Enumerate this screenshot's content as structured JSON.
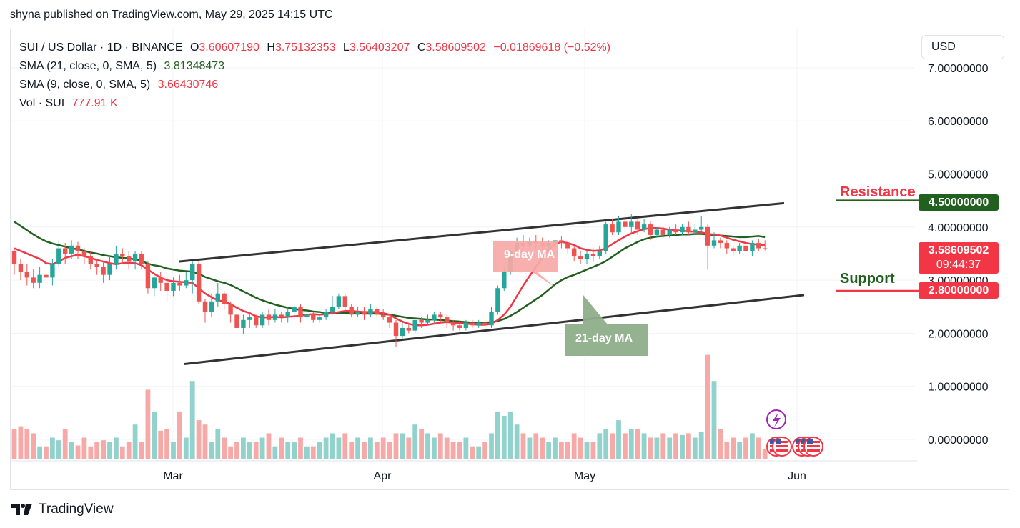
{
  "header": {
    "published_text": "shyna published on TradingView.com, May 29, 2025 14:15 UTC"
  },
  "legend": {
    "symbol": "SUI / US Dollar · 1D · BINANCE",
    "open_key": "O",
    "open_val": "3.60607190",
    "high_key": "H",
    "high_val": "3.75132353",
    "low_key": "L",
    "low_val": "3.56403207",
    "close_key": "C",
    "close_val": "3.58609502",
    "change": "−0.01869618 (−0.52%)",
    "sma21_label": "SMA (21, close, 0, SMA, 5)",
    "sma21_val": "3.81348473",
    "sma9_label": "SMA (9, close, 0, SMA, 5)",
    "sma9_val": "3.66430746",
    "vol_label": "Vol · SUI",
    "vol_val": "777.91 K"
  },
  "currency_button": "USD",
  "price_tags": {
    "current_price": "3.58609502",
    "countdown": "09:44:37",
    "resistance_price": "4.50000000",
    "support_price": "2.80000000"
  },
  "annotations": {
    "resistance": "Resistance",
    "support": "Support",
    "sma9_callout": "9-day MA",
    "sma21_callout": "21-day MA"
  },
  "colors": {
    "up": "#26a69a",
    "down": "#ef5350",
    "vol_up": "#92d2cc",
    "vol_down": "#f7a9a7",
    "sma9": "#f23645",
    "sma21": "#22601f",
    "resistance_tag": "#22601f",
    "support_tag": "#f23645"
  },
  "icons": {
    "event": "lightning-icon",
    "flags": "us-flag-icon"
  },
  "footer": {
    "brand": "TradingView"
  },
  "chart_data": {
    "type": "candlestick",
    "symbol": "SUI / US Dollar",
    "interval": "1D",
    "exchange": "BINANCE",
    "y_axis_ticks": [
      "7.00000000",
      "6.00000000",
      "5.00000000",
      "4.00000000",
      "3.00000000",
      "2.00000000",
      "1.00000000",
      "0.00000000"
    ],
    "x_axis_ticks": [
      "Mar",
      "Apr",
      "May",
      "Jun"
    ],
    "ylim": [
      -0.4,
      7.6
    ],
    "series": [
      {
        "name": "SMA (21, close, 0, SMA, 5)",
        "last": 3.81348473
      },
      {
        "name": "SMA (9, close, 0, SMA, 5)",
        "last": 3.66430746
      }
    ],
    "candles": [
      [
        3.55,
        3.3,
        3.58,
        3.1
      ],
      [
        3.3,
        3.15,
        3.4,
        3.0
      ],
      [
        3.15,
        3.05,
        3.3,
        2.9
      ],
      [
        3.05,
        2.95,
        3.2,
        2.85
      ],
      [
        2.95,
        3.1,
        3.25,
        2.85
      ],
      [
        3.1,
        3.05,
        3.25,
        2.95
      ],
      [
        3.05,
        3.3,
        3.4,
        2.9
      ],
      [
        3.3,
        3.6,
        3.75,
        3.25
      ],
      [
        3.6,
        3.5,
        3.7,
        3.3
      ],
      [
        3.5,
        3.65,
        3.75,
        3.4
      ],
      [
        3.65,
        3.55,
        3.72,
        3.4
      ],
      [
        3.55,
        3.45,
        3.6,
        3.3
      ],
      [
        3.45,
        3.3,
        3.55,
        3.2
      ],
      [
        3.3,
        3.25,
        3.4,
        3.1
      ],
      [
        3.25,
        3.1,
        3.35,
        2.95
      ],
      [
        3.1,
        3.3,
        3.45,
        3.0
      ],
      [
        3.3,
        3.5,
        3.65,
        3.2
      ],
      [
        3.5,
        3.45,
        3.6,
        3.3
      ],
      [
        3.45,
        3.35,
        3.55,
        3.2
      ],
      [
        3.35,
        3.5,
        3.55,
        3.2
      ],
      [
        3.5,
        3.3,
        3.55,
        3.2
      ],
      [
        3.3,
        2.85,
        3.35,
        2.75
      ],
      [
        2.85,
        3.05,
        3.1,
        2.7
      ],
      [
        3.05,
        2.95,
        3.15,
        2.8
      ],
      [
        2.95,
        2.8,
        3.05,
        2.6
      ],
      [
        2.8,
        2.95,
        3.05,
        2.7
      ],
      [
        2.95,
        2.9,
        3.1,
        2.8
      ],
      [
        2.9,
        3.0,
        3.15,
        2.85
      ],
      [
        3.0,
        3.3,
        3.35,
        2.75
      ],
      [
        3.3,
        2.6,
        3.35,
        2.55
      ],
      [
        2.6,
        2.4,
        2.65,
        2.2
      ],
      [
        2.4,
        2.6,
        2.75,
        2.3
      ],
      [
        2.6,
        2.75,
        2.95,
        2.5
      ],
      [
        2.75,
        2.55,
        2.8,
        2.45
      ],
      [
        2.55,
        2.35,
        2.6,
        2.2
      ],
      [
        2.35,
        2.1,
        2.45,
        2.05
      ],
      [
        2.1,
        2.25,
        2.35,
        1.98
      ],
      [
        2.25,
        2.3,
        2.4,
        2.1
      ],
      [
        2.3,
        2.15,
        2.35,
        2.1
      ],
      [
        2.15,
        2.35,
        2.4,
        2.1
      ],
      [
        2.35,
        2.25,
        2.45,
        2.15
      ],
      [
        2.25,
        2.35,
        2.45,
        2.2
      ],
      [
        2.35,
        2.3,
        2.4,
        2.2
      ],
      [
        2.3,
        2.4,
        2.5,
        2.2
      ],
      [
        2.4,
        2.5,
        2.55,
        2.25
      ],
      [
        2.5,
        2.3,
        2.55,
        2.2
      ],
      [
        2.3,
        2.35,
        2.45,
        2.25
      ],
      [
        2.35,
        2.25,
        2.4,
        2.2
      ],
      [
        2.25,
        2.3,
        2.35,
        2.2
      ],
      [
        2.3,
        2.4,
        2.45,
        2.25
      ],
      [
        2.4,
        2.5,
        2.7,
        2.35
      ],
      [
        2.5,
        2.7,
        2.75,
        2.45
      ],
      [
        2.7,
        2.5,
        2.75,
        2.4
      ],
      [
        2.5,
        2.35,
        2.55,
        2.3
      ],
      [
        2.35,
        2.4,
        2.5,
        2.3
      ],
      [
        2.4,
        2.35,
        2.5,
        2.25
      ],
      [
        2.35,
        2.45,
        2.55,
        2.3
      ],
      [
        2.45,
        2.35,
        2.5,
        2.3
      ],
      [
        2.35,
        2.3,
        2.45,
        2.25
      ],
      [
        2.3,
        2.2,
        2.35,
        2.1
      ],
      [
        2.2,
        1.95,
        2.25,
        1.75
      ],
      [
        1.95,
        2.1,
        2.2,
        1.9
      ],
      [
        2.1,
        2.05,
        2.2,
        2.0
      ],
      [
        2.05,
        2.25,
        2.3,
        2.0
      ],
      [
        2.25,
        2.2,
        2.3,
        2.1
      ],
      [
        2.2,
        2.25,
        2.35,
        2.15
      ],
      [
        2.25,
        2.35,
        2.4,
        2.2
      ],
      [
        2.35,
        2.3,
        2.4,
        2.2
      ],
      [
        2.3,
        2.2,
        2.35,
        2.1
      ],
      [
        2.2,
        2.15,
        2.25,
        2.05
      ],
      [
        2.15,
        2.1,
        2.2,
        2.05
      ],
      [
        2.1,
        2.2,
        2.25,
        2.05
      ],
      [
        2.2,
        2.15,
        2.25,
        2.1
      ],
      [
        2.15,
        2.2,
        2.25,
        2.1
      ],
      [
        2.2,
        2.15,
        2.25,
        2.1
      ],
      [
        2.15,
        2.4,
        2.5,
        2.1
      ],
      [
        2.4,
        2.85,
        2.9,
        2.35
      ],
      [
        2.85,
        3.15,
        3.25,
        2.8
      ],
      [
        3.15,
        3.55,
        3.6,
        3.1
      ],
      [
        3.55,
        3.7,
        3.8,
        3.5
      ],
      [
        3.7,
        3.65,
        3.85,
        3.55
      ],
      [
        3.65,
        3.72,
        3.8,
        3.6
      ],
      [
        3.72,
        3.7,
        3.85,
        3.6
      ],
      [
        3.7,
        3.65,
        3.8,
        3.55
      ],
      [
        3.65,
        3.7,
        3.75,
        3.6
      ],
      [
        3.7,
        3.75,
        3.8,
        3.6
      ],
      [
        3.75,
        3.7,
        3.82,
        3.6
      ],
      [
        3.7,
        3.6,
        3.75,
        3.5
      ],
      [
        3.6,
        3.45,
        3.65,
        3.35
      ],
      [
        3.45,
        3.4,
        3.55,
        3.3
      ],
      [
        3.4,
        3.5,
        3.55,
        3.3
      ],
      [
        3.5,
        3.45,
        3.6,
        3.35
      ],
      [
        3.45,
        3.55,
        3.65,
        3.4
      ],
      [
        3.55,
        4.05,
        4.1,
        3.5
      ],
      [
        4.05,
        3.9,
        4.15,
        3.85
      ],
      [
        3.9,
        4.1,
        4.2,
        3.85
      ],
      [
        4.1,
        4.0,
        4.2,
        3.9
      ],
      [
        4.0,
        4.1,
        4.25,
        3.9
      ],
      [
        4.1,
        3.95,
        4.15,
        3.85
      ],
      [
        3.95,
        4.05,
        4.15,
        3.9
      ],
      [
        4.05,
        3.85,
        4.1,
        3.75
      ],
      [
        3.85,
        3.95,
        4.0,
        3.8
      ],
      [
        3.95,
        3.85,
        4.0,
        3.8
      ],
      [
        3.85,
        3.95,
        4.0,
        3.8
      ],
      [
        3.95,
        3.9,
        4.05,
        3.85
      ],
      [
        3.9,
        4.0,
        4.05,
        3.85
      ],
      [
        4.0,
        3.9,
        4.1,
        3.85
      ],
      [
        3.9,
        3.95,
        4.05,
        3.85
      ],
      [
        3.95,
        4.0,
        4.2,
        3.85
      ],
      [
        4.0,
        3.65,
        4.05,
        3.2
      ],
      [
        3.65,
        3.75,
        3.9,
        3.6
      ],
      [
        3.75,
        3.7,
        3.8,
        3.6
      ],
      [
        3.7,
        3.6,
        3.75,
        3.5
      ],
      [
        3.6,
        3.55,
        3.65,
        3.45
      ],
      [
        3.55,
        3.65,
        3.7,
        3.5
      ],
      [
        3.65,
        3.55,
        3.7,
        3.45
      ],
      [
        3.55,
        3.7,
        3.75,
        3.45
      ],
      [
        3.7,
        3.6,
        3.78,
        3.55
      ],
      [
        3.6,
        3.59,
        3.75,
        3.56
      ]
    ],
    "volume": [
      0.35,
      0.38,
      0.35,
      0.3,
      0.15,
      0.15,
      0.25,
      0.22,
      0.35,
      0.2,
      0.16,
      0.25,
      0.15,
      0.2,
      0.22,
      0.2,
      0.25,
      0.15,
      0.2,
      0.4,
      0.2,
      0.8,
      0.55,
      0.33,
      0.35,
      0.2,
      0.55,
      0.25,
      0.9,
      0.45,
      0.4,
      0.2,
      0.35,
      0.25,
      0.15,
      0.2,
      0.25,
      0.2,
      0.2,
      0.25,
      0.3,
      0.15,
      0.25,
      0.2,
      0.2,
      0.25,
      0.15,
      0.15,
      0.2,
      0.25,
      0.3,
      0.25,
      0.3,
      0.2,
      0.25,
      0.2,
      0.25,
      0.2,
      0.25,
      0.2,
      0.3,
      0.3,
      0.25,
      0.4,
      0.35,
      0.3,
      0.25,
      0.3,
      0.25,
      0.2,
      0.2,
      0.25,
      0.15,
      0.15,
      0.2,
      0.3,
      0.55,
      0.5,
      0.55,
      0.4,
      0.3,
      0.25,
      0.3,
      0.25,
      0.2,
      0.25,
      0.2,
      0.2,
      0.3,
      0.25,
      0.2,
      0.2,
      0.3,
      0.35,
      0.3,
      0.45,
      0.3,
      0.35,
      0.35,
      0.3,
      0.25,
      0.25,
      0.3,
      0.25,
      0.3,
      0.28,
      0.3,
      0.25,
      0.32,
      1.2,
      0.9,
      0.35,
      0.2,
      0.25,
      0.2,
      0.25,
      0.3,
      0.25,
      0.12
    ],
    "sma9": [
      3.6,
      3.55,
      3.5,
      3.45,
      3.4,
      3.32,
      3.3,
      3.35,
      3.42,
      3.45,
      3.48,
      3.45,
      3.42,
      3.38,
      3.35,
      3.32,
      3.3,
      3.32,
      3.33,
      3.32,
      3.28,
      3.2,
      3.12,
      3.05,
      3.0,
      2.98,
      2.97,
      2.96,
      2.95,
      2.85,
      2.75,
      2.68,
      2.62,
      2.6,
      2.55,
      2.48,
      2.42,
      2.38,
      2.32,
      2.3,
      2.3,
      2.31,
      2.3,
      2.31,
      2.32,
      2.33,
      2.35,
      2.36,
      2.35,
      2.36,
      2.38,
      2.4,
      2.42,
      2.42,
      2.41,
      2.4,
      2.4,
      2.4,
      2.38,
      2.35,
      2.28,
      2.22,
      2.18,
      2.15,
      2.15,
      2.16,
      2.18,
      2.2,
      2.21,
      2.2,
      2.19,
      2.18,
      2.17,
      2.16,
      2.16,
      2.18,
      2.25,
      2.35,
      2.5,
      2.7,
      2.9,
      3.08,
      3.25,
      3.42,
      3.58,
      3.68,
      3.72,
      3.7,
      3.66,
      3.6,
      3.57,
      3.55,
      3.56,
      3.6,
      3.68,
      3.75,
      3.82,
      3.88,
      3.92,
      3.96,
      3.98,
      3.98,
      3.97,
      3.95,
      3.94,
      3.93,
      3.92,
      3.91,
      3.9,
      3.87,
      3.86,
      3.84,
      3.8,
      3.76,
      3.73,
      3.7,
      3.68,
      3.67,
      3.66
    ],
    "sma21": [
      4.1,
      4.02,
      3.94,
      3.86,
      3.79,
      3.73,
      3.69,
      3.66,
      3.63,
      3.6,
      3.58,
      3.55,
      3.52,
      3.5,
      3.47,
      3.45,
      3.43,
      3.42,
      3.41,
      3.39,
      3.36,
      3.31,
      3.28,
      3.26,
      3.22,
      3.2,
      3.18,
      3.17,
      3.16,
      3.12,
      3.06,
      3.02,
      2.98,
      2.95,
      2.91,
      2.85,
      2.79,
      2.73,
      2.67,
      2.62,
      2.58,
      2.54,
      2.51,
      2.48,
      2.46,
      2.44,
      2.43,
      2.41,
      2.4,
      2.38,
      2.38,
      2.38,
      2.38,
      2.38,
      2.38,
      2.37,
      2.37,
      2.37,
      2.36,
      2.35,
      2.33,
      2.31,
      2.29,
      2.28,
      2.27,
      2.26,
      2.26,
      2.25,
      2.24,
      2.23,
      2.22,
      2.21,
      2.2,
      2.2,
      2.2,
      2.21,
      2.23,
      2.27,
      2.33,
      2.4,
      2.48,
      2.56,
      2.64,
      2.72,
      2.82,
      2.92,
      3.0,
      3.06,
      3.1,
      3.15,
      3.2,
      3.25,
      3.3,
      3.36,
      3.44,
      3.52,
      3.6,
      3.66,
      3.72,
      3.77,
      3.8,
      3.82,
      3.83,
      3.84,
      3.85,
      3.86,
      3.86,
      3.87,
      3.87,
      3.86,
      3.85,
      3.84,
      3.83,
      3.82,
      3.81,
      3.81,
      3.82,
      3.83,
      3.81
    ],
    "trendlines": [
      {
        "name": "upper-channel",
        "from": [
          "Mar",
          3.35
        ],
        "to": [
          "Jun",
          4.45
        ]
      },
      {
        "name": "lower-channel",
        "from": [
          "Mar",
          1.42
        ],
        "to": [
          "Jun",
          2.72
        ]
      }
    ],
    "levels": {
      "resistance": 4.5,
      "support": 2.8,
      "last_close": 3.58609502
    }
  }
}
